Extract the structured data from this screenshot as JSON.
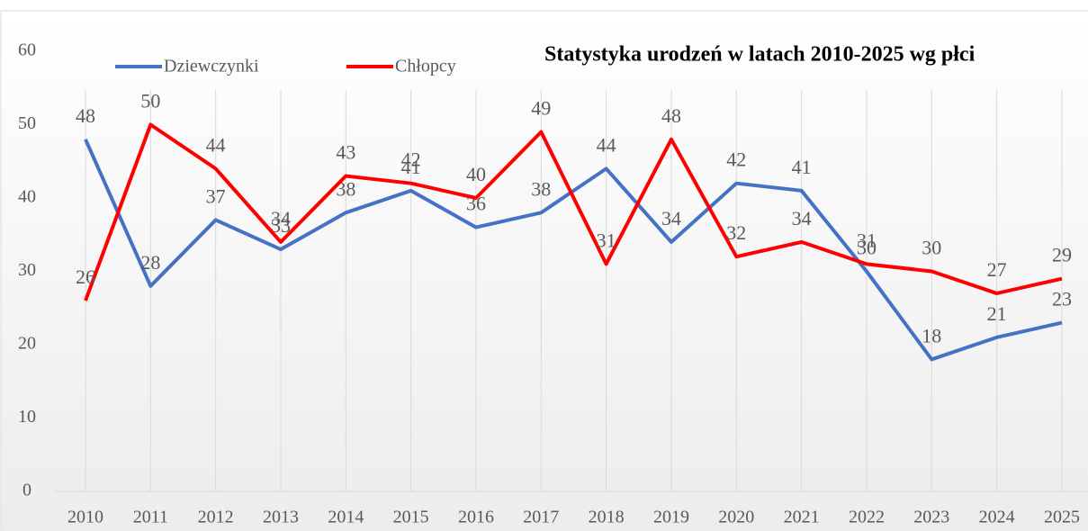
{
  "chart_data": {
    "type": "line",
    "title": "Statystyka urodzeń w latach 2010-2025 wg płci",
    "categories": [
      "2010",
      "2011",
      "2012",
      "2013",
      "2014",
      "2015",
      "2016",
      "2017",
      "2018",
      "2019",
      "2020",
      "2021",
      "2022",
      "2023",
      "2024",
      "2025"
    ],
    "series": [
      {
        "name": "Dziewczynki",
        "color": "#4472c4",
        "values": [
          48,
          28,
          37,
          33,
          38,
          41,
          36,
          38,
          44,
          34,
          42,
          41,
          30,
          18,
          21,
          23
        ]
      },
      {
        "name": "Chłopcy",
        "color": "#ff0000",
        "values": [
          26,
          50,
          44,
          34,
          43,
          42,
          40,
          49,
          31,
          48,
          32,
          34,
          31,
          30,
          27,
          29
        ]
      }
    ],
    "ylim": [
      0,
      60
    ],
    "yticks": [
      0,
      10,
      20,
      30,
      40,
      50,
      60
    ],
    "grid": "vertical",
    "legend": "top-left"
  }
}
